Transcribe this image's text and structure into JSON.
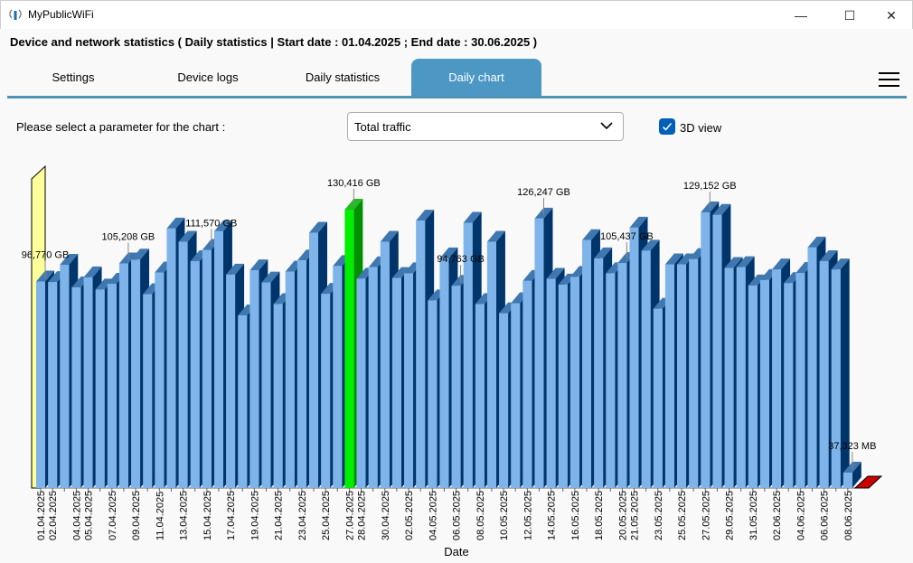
{
  "window": {
    "title": "MyPublicWiFi",
    "minimize": "—",
    "maximize": "☐",
    "close": "✕"
  },
  "header": {
    "text": "Device and network statistics ( Daily statistics | Start date : 01.04.2025 ; End date : 30.06.2025 )"
  },
  "tabs": [
    {
      "label": "Settings"
    },
    {
      "label": "Device logs"
    },
    {
      "label": "Daily statistics"
    },
    {
      "label": "Daily chart",
      "active": true
    }
  ],
  "controls": {
    "param_label": "Please select a parameter for the chart :",
    "param_value": "Total traffic",
    "view3d_label": "3D view",
    "view3d_checked": true
  },
  "colors": {
    "bar_front": "#7eb4ea",
    "bar_top": "#3f77b0",
    "bar_side": "#00356b",
    "max_front": "#00ee00",
    "max_side": "#009000",
    "accent": "#4c97c4"
  },
  "chart_data": {
    "type": "bar",
    "title": "",
    "xlabel": "Date",
    "ylabel": "",
    "unit": "GB",
    "categories": [
      "01.04.2025",
      "02.04.2025",
      "03.04.2025",
      "04.04.2025",
      "05.04.2025",
      "06.04.2025",
      "07.04.2025",
      "08.04.2025",
      "09.04.2025",
      "10.04.2025",
      "11.04.2025",
      "12.04.2025",
      "13.04.2025",
      "14.04.2025",
      "15.04.2025",
      "16.04.2025",
      "17.04.2025",
      "18.04.2025",
      "19.04.2025",
      "20.04.2025",
      "21.04.2025",
      "22.04.2025",
      "23.04.2025",
      "24.04.2025",
      "25.04.2025",
      "26.04.2025",
      "27.04.2025",
      "28.04.2025",
      "29.04.2025",
      "30.04.2025",
      "01.05.2025",
      "02.05.2025",
      "03.05.2025",
      "04.05.2025",
      "05.05.2025",
      "06.05.2025",
      "07.05.2025",
      "08.05.2025",
      "09.05.2025",
      "10.05.2025",
      "11.05.2025",
      "12.05.2025",
      "13.05.2025",
      "14.05.2025",
      "15.05.2025",
      "16.05.2025",
      "17.05.2025",
      "18.05.2025",
      "19.05.2025",
      "20.05.2025",
      "21.05.2025",
      "22.05.2025",
      "23.05.2025",
      "24.05.2025",
      "25.05.2025",
      "26.05.2025",
      "27.05.2025",
      "28.05.2025",
      "29.05.2025",
      "30.05.2025",
      "31.05.2025",
      "01.06.2025",
      "02.06.2025",
      "03.06.2025",
      "04.06.2025",
      "05.06.2025",
      "06.06.2025",
      "07.06.2025",
      "08.06.2025"
    ],
    "values": [
      96.77,
      96.5,
      104.6,
      94.0,
      98.7,
      93.0,
      95.7,
      105.208,
      107.0,
      90.8,
      101.0,
      121.6,
      115.4,
      106.3,
      111.57,
      120.3,
      100.0,
      80.9,
      102.0,
      96.3,
      86.2,
      101.4,
      106.6,
      119.6,
      91.0,
      104.0,
      130.416,
      98.1,
      103.4,
      115.4,
      98.4,
      100.6,
      125.3,
      87.9,
      107.6,
      94.763,
      124.3,
      86.2,
      115.4,
      81.9,
      86.6,
      97.0,
      126.247,
      98.0,
      95.3,
      98.9,
      116.1,
      107.6,
      100.6,
      105.437,
      122.0,
      111.2,
      84.0,
      104.8,
      104.8,
      107.3,
      129.152,
      128.0,
      103.1,
      103.5,
      94.9,
      97.5,
      102.4,
      96.0,
      100.8,
      112.7,
      106.3,
      102.4,
      0.036
    ],
    "highlight_max_index": 26,
    "ylim": [
      0,
      135
    ],
    "x_tick_labels": [
      "01.04.2025",
      "02.04.2025",
      "04.04.2025",
      "05.04.2025",
      "07.04.2025",
      "09.04.2025",
      "11.04.2025",
      "13.04.2025",
      "15.04.2025",
      "17.04.2025",
      "19.04.2025",
      "21.04.2025",
      "23.04.2025",
      "25.04.2025",
      "27.04.2025",
      "28.04.2025",
      "30.04.2025",
      "02.05.2025",
      "04.05.2025",
      "06.05.2025",
      "08.05.2025",
      "10.05.2025",
      "12.05.2025",
      "14.05.2025",
      "16.05.2025",
      "18.05.2025",
      "20.05.2025",
      "21.05.2025",
      "23.05.2025",
      "25.05.2025",
      "27.05.2025",
      "29.05.2025",
      "31.05.2025",
      "02.06.2025",
      "04.06.2025",
      "06.06.2025",
      "08.06.2025"
    ],
    "annotations": [
      {
        "index": 0,
        "text": "96,770 GB"
      },
      {
        "index": 7,
        "text": "105,208 GB"
      },
      {
        "index": 14,
        "text": "111,570 GB"
      },
      {
        "index": 26,
        "text": "130,416 GB"
      },
      {
        "index": 35,
        "text": "94,763 GB"
      },
      {
        "index": 42,
        "text": "126,247 GB"
      },
      {
        "index": 49,
        "text": "105,437 GB"
      },
      {
        "index": 56,
        "text": "129,152 GB"
      },
      {
        "index": 68,
        "text": "37,323 MB"
      }
    ],
    "grid": false,
    "legend": "none"
  }
}
